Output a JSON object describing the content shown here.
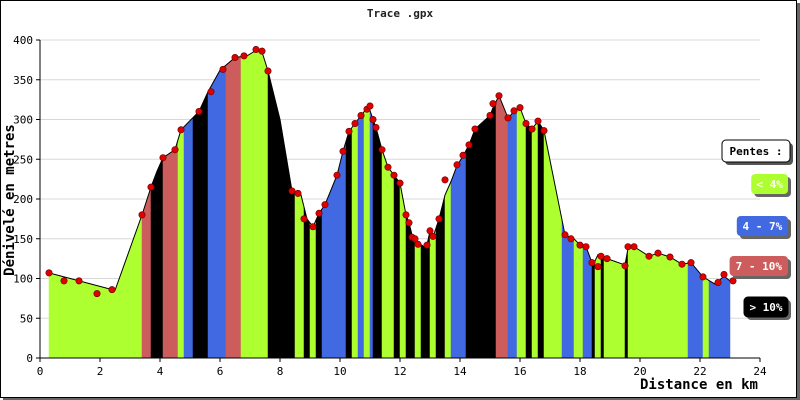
{
  "chart_data": {
    "type": "area",
    "title": "Trace .gpx",
    "xlabel": "Distance en km",
    "ylabel": "Dénivelé en metres",
    "xlim": [
      0,
      24
    ],
    "ylim": [
      0,
      400
    ],
    "x_ticks": [
      0,
      2,
      4,
      6,
      8,
      10,
      12,
      14,
      16,
      18,
      20,
      22,
      24
    ],
    "y_ticks": [
      0,
      50,
      100,
      150,
      200,
      250,
      300,
      350,
      400
    ],
    "grid": true,
    "legend": {
      "title": "Pentes :",
      "position": "right",
      "entries": [
        {
          "label": "< 4%",
          "color": "#adff2f"
        },
        {
          "label": "4 - 7%",
          "color": "#4169e1"
        },
        {
          "label": "7 - 10%",
          "color": "#cd5c5c"
        },
        {
          "label": "> 10%",
          "color": "#000000"
        }
      ]
    },
    "colors": {
      "low": "#adff2f",
      "mid": "#4169e1",
      "high": "#cd5c5c",
      "steep": "#000000",
      "marker": "#e00000"
    },
    "profile": [
      [
        0.3,
        107
      ],
      [
        2.5,
        85
      ],
      [
        3.4,
        180
      ],
      [
        3.7,
        215
      ],
      [
        3.9,
        235
      ],
      [
        4.1,
        252
      ],
      [
        4.5,
        262
      ],
      [
        4.7,
        287
      ],
      [
        5.3,
        310
      ],
      [
        5.6,
        335
      ],
      [
        6.0,
        362
      ],
      [
        6.5,
        378
      ],
      [
        6.9,
        380
      ],
      [
        7.2,
        387
      ],
      [
        7.4,
        385
      ],
      [
        7.6,
        361
      ],
      [
        8.0,
        300
      ],
      [
        8.4,
        210
      ],
      [
        8.7,
        205
      ],
      [
        8.9,
        175
      ],
      [
        9.1,
        165
      ],
      [
        9.3,
        182
      ],
      [
        9.5,
        193
      ],
      [
        9.9,
        230
      ],
      [
        10.1,
        260
      ],
      [
        10.3,
        285
      ],
      [
        10.5,
        295
      ],
      [
        10.7,
        305
      ],
      [
        10.85,
        312
      ],
      [
        10.95,
        317
      ],
      [
        11.1,
        300
      ],
      [
        11.2,
        290
      ],
      [
        11.4,
        262
      ],
      [
        11.6,
        240
      ],
      [
        11.8,
        230
      ],
      [
        12.0,
        220
      ],
      [
        12.1,
        200
      ],
      [
        12.2,
        180
      ],
      [
        12.3,
        170
      ],
      [
        12.4,
        155
      ],
      [
        12.5,
        148
      ],
      [
        12.6,
        145
      ],
      [
        12.8,
        140
      ],
      [
        12.9,
        142
      ],
      [
        13.0,
        160
      ],
      [
        13.1,
        152
      ],
      [
        13.3,
        175
      ],
      [
        13.5,
        205
      ],
      [
        13.7,
        222
      ],
      [
        13.9,
        242
      ],
      [
        14.1,
        254
      ],
      [
        14.3,
        268
      ],
      [
        14.5,
        288
      ],
      [
        15.0,
        305
      ],
      [
        15.1,
        315
      ],
      [
        15.3,
        330
      ],
      [
        15.6,
        302
      ],
      [
        15.8,
        310
      ],
      [
        16.0,
        315
      ],
      [
        16.2,
        295
      ],
      [
        16.4,
        288
      ],
      [
        16.6,
        298
      ],
      [
        16.8,
        286
      ],
      [
        17.5,
        155
      ],
      [
        17.8,
        150
      ],
      [
        18.0,
        142
      ],
      [
        18.2,
        140
      ],
      [
        18.4,
        120
      ],
      [
        18.5,
        122
      ],
      [
        18.6,
        130
      ],
      [
        18.9,
        125
      ],
      [
        19.5,
        117
      ],
      [
        19.6,
        138
      ],
      [
        19.8,
        140
      ],
      [
        20.3,
        128
      ],
      [
        20.6,
        132
      ],
      [
        21.0,
        127
      ],
      [
        21.4,
        118
      ],
      [
        21.7,
        120
      ],
      [
        22.1,
        102
      ],
      [
        22.5,
        93
      ],
      [
        22.8,
        103
      ],
      [
        23.0,
        97
      ]
    ],
    "slope_segments": [
      [
        0.3,
        3.4,
        "low"
      ],
      [
        3.4,
        3.7,
        "high"
      ],
      [
        3.7,
        4.1,
        "steep"
      ],
      [
        4.1,
        4.6,
        "high"
      ],
      [
        4.6,
        4.8,
        "low"
      ],
      [
        4.8,
        5.1,
        "mid"
      ],
      [
        5.1,
        5.6,
        "steep"
      ],
      [
        5.6,
        6.2,
        "mid"
      ],
      [
        6.2,
        6.7,
        "high"
      ],
      [
        6.7,
        7.6,
        "low"
      ],
      [
        7.6,
        8.5,
        "steep"
      ],
      [
        8.5,
        8.8,
        "low"
      ],
      [
        8.8,
        9.0,
        "steep"
      ],
      [
        9.0,
        9.2,
        "low"
      ],
      [
        9.2,
        9.4,
        "steep"
      ],
      [
        9.4,
        10.2,
        "mid"
      ],
      [
        10.2,
        10.4,
        "steep"
      ],
      [
        10.4,
        10.6,
        "low"
      ],
      [
        10.6,
        10.8,
        "mid"
      ],
      [
        10.8,
        11.0,
        "low"
      ],
      [
        11.0,
        11.1,
        "mid"
      ],
      [
        11.1,
        11.4,
        "steep"
      ],
      [
        11.4,
        11.8,
        "low"
      ],
      [
        11.8,
        12.0,
        "steep"
      ],
      [
        12.0,
        12.2,
        "low"
      ],
      [
        12.2,
        12.5,
        "steep"
      ],
      [
        12.5,
        12.7,
        "low"
      ],
      [
        12.7,
        13.0,
        "steep"
      ],
      [
        13.0,
        13.2,
        "low"
      ],
      [
        13.2,
        13.5,
        "steep"
      ],
      [
        13.5,
        13.7,
        "low"
      ],
      [
        13.7,
        14.2,
        "mid"
      ],
      [
        14.2,
        15.2,
        "steep"
      ],
      [
        15.2,
        15.6,
        "high"
      ],
      [
        15.6,
        15.9,
        "mid"
      ],
      [
        15.9,
        16.2,
        "low"
      ],
      [
        16.2,
        16.4,
        "steep"
      ],
      [
        16.4,
        16.6,
        "low"
      ],
      [
        16.6,
        16.8,
        "steep"
      ],
      [
        16.8,
        17.4,
        "low"
      ],
      [
        17.4,
        17.8,
        "mid"
      ],
      [
        17.8,
        18.1,
        "low"
      ],
      [
        18.1,
        18.4,
        "mid"
      ],
      [
        18.4,
        18.5,
        "steep"
      ],
      [
        18.5,
        18.7,
        "low"
      ],
      [
        18.7,
        18.8,
        "steep"
      ],
      [
        18.8,
        19.5,
        "low"
      ],
      [
        19.5,
        19.6,
        "steep"
      ],
      [
        19.6,
        21.6,
        "low"
      ],
      [
        21.6,
        22.1,
        "mid"
      ],
      [
        22.1,
        22.3,
        "low"
      ],
      [
        22.3,
        23.0,
        "mid"
      ]
    ],
    "markers": [
      [
        0.3,
        107
      ],
      [
        0.8,
        97
      ],
      [
        1.3,
        97
      ],
      [
        1.9,
        81
      ],
      [
        2.4,
        86
      ],
      [
        3.4,
        180
      ],
      [
        3.7,
        215
      ],
      [
        4.1,
        252
      ],
      [
        4.5,
        262
      ],
      [
        4.7,
        287
      ],
      [
        5.3,
        310
      ],
      [
        5.7,
        335
      ],
      [
        6.1,
        363
      ],
      [
        6.5,
        378
      ],
      [
        6.8,
        380
      ],
      [
        7.2,
        388
      ],
      [
        7.4,
        386
      ],
      [
        7.6,
        361
      ],
      [
        8.4,
        210
      ],
      [
        8.6,
        207
      ],
      [
        8.8,
        175
      ],
      [
        9.1,
        165
      ],
      [
        9.3,
        182
      ],
      [
        9.5,
        193
      ],
      [
        9.9,
        230
      ],
      [
        10.1,
        260
      ],
      [
        10.3,
        285
      ],
      [
        10.5,
        295
      ],
      [
        10.7,
        305
      ],
      [
        10.9,
        313
      ],
      [
        11.0,
        317
      ],
      [
        11.1,
        300
      ],
      [
        11.2,
        290
      ],
      [
        11.4,
        262
      ],
      [
        11.6,
        240
      ],
      [
        11.8,
        230
      ],
      [
        12.0,
        220
      ],
      [
        12.2,
        180
      ],
      [
        12.3,
        170
      ],
      [
        12.4,
        152
      ],
      [
        12.5,
        150
      ],
      [
        12.6,
        143
      ],
      [
        12.9,
        142
      ],
      [
        13.0,
        160
      ],
      [
        13.1,
        153
      ],
      [
        13.3,
        175
      ],
      [
        13.5,
        224
      ],
      [
        13.9,
        243
      ],
      [
        14.1,
        255
      ],
      [
        14.3,
        268
      ],
      [
        14.5,
        288
      ],
      [
        15.0,
        305
      ],
      [
        15.1,
        320
      ],
      [
        15.3,
        330
      ],
      [
        15.6,
        302
      ],
      [
        15.8,
        311
      ],
      [
        16.0,
        315
      ],
      [
        16.2,
        295
      ],
      [
        16.4,
        288
      ],
      [
        16.6,
        298
      ],
      [
        16.8,
        286
      ],
      [
        17.5,
        155
      ],
      [
        17.7,
        150
      ],
      [
        18.0,
        142
      ],
      [
        18.2,
        140
      ],
      [
        18.4,
        120
      ],
      [
        18.6,
        115
      ],
      [
        18.7,
        128
      ],
      [
        18.9,
        125
      ],
      [
        19.5,
        116
      ],
      [
        19.6,
        140
      ],
      [
        19.8,
        140
      ],
      [
        20.3,
        128
      ],
      [
        20.6,
        132
      ],
      [
        21.0,
        127
      ],
      [
        21.4,
        118
      ],
      [
        21.7,
        120
      ],
      [
        22.1,
        102
      ],
      [
        22.6,
        95
      ],
      [
        22.8,
        105
      ],
      [
        23.1,
        97
      ]
    ]
  }
}
